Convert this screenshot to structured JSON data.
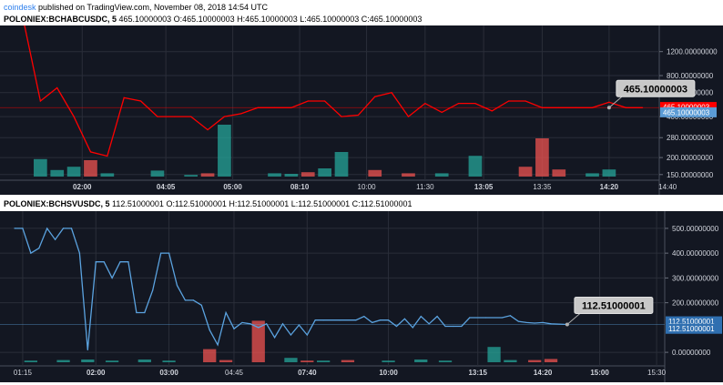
{
  "header": {
    "site": "coindesk",
    "published": "published on TradingView.com, November 08, 2018 14:54 UTC"
  },
  "chart_data": [
    {
      "type": "line",
      "symbol": "POLONIEX:BCHABCUSDC, 5",
      "ohlc_text": "465.10000003 O:465.10000003 H:465.10000003 L:465.10000003 C:465.10000003",
      "colors": {
        "background": "#131722",
        "line": "#ff0000",
        "volume_up": "#26a69a",
        "volume_down": "#ef5350",
        "grid": "#2a2e39"
      },
      "y_scale": "log",
      "ylim": [
        145,
        1600
      ],
      "y_ticks": [
        "1200.00000000",
        "800.00000000",
        "600.00000000",
        "400.00000000",
        "280.00000000",
        "200.00000000",
        "150.00000000"
      ],
      "y_tick_values": [
        1200,
        800,
        600,
        400,
        280,
        200,
        150
      ],
      "x_range": [
        0,
        38
      ],
      "x_ticks": [
        {
          "label": "02:00",
          "x": 3.5,
          "bold": true
        },
        {
          "label": "04:05",
          "x": 8.5,
          "bold": true
        },
        {
          "label": "05:00",
          "x": 12.5,
          "bold": true
        },
        {
          "label": "08:10",
          "x": 16.5,
          "bold": true
        },
        {
          "label": "10:00",
          "x": 20.5,
          "bold": false
        },
        {
          "label": "11:30",
          "x": 24.0,
          "bold": false
        },
        {
          "label": "13:05",
          "x": 27.5,
          "bold": true
        },
        {
          "label": "13:35",
          "x": 31.0,
          "bold": false
        },
        {
          "label": "14:20",
          "x": 35.0,
          "bold": true
        },
        {
          "label": "14:40",
          "x": 38.5,
          "bold": false
        }
      ],
      "line": [
        {
          "x": 0,
          "y": 2000
        },
        {
          "x": 1,
          "y": 520
        },
        {
          "x": 2,
          "y": 650
        },
        {
          "x": 3,
          "y": 400
        },
        {
          "x": 4,
          "y": 220
        },
        {
          "x": 5,
          "y": 205
        },
        {
          "x": 6,
          "y": 550
        },
        {
          "x": 7,
          "y": 520
        },
        {
          "x": 8,
          "y": 400
        },
        {
          "x": 9,
          "y": 400
        },
        {
          "x": 10,
          "y": 400
        },
        {
          "x": 11,
          "y": 320
        },
        {
          "x": 12,
          "y": 400
        },
        {
          "x": 13,
          "y": 420
        },
        {
          "x": 14,
          "y": 465
        },
        {
          "x": 15,
          "y": 465
        },
        {
          "x": 16,
          "y": 465
        },
        {
          "x": 17,
          "y": 520
        },
        {
          "x": 18,
          "y": 520
        },
        {
          "x": 19,
          "y": 400
        },
        {
          "x": 20,
          "y": 410
        },
        {
          "x": 21,
          "y": 560
        },
        {
          "x": 22,
          "y": 600
        },
        {
          "x": 23,
          "y": 400
        },
        {
          "x": 24,
          "y": 500
        },
        {
          "x": 25,
          "y": 430
        },
        {
          "x": 26,
          "y": 500
        },
        {
          "x": 27,
          "y": 500
        },
        {
          "x": 28,
          "y": 440
        },
        {
          "x": 29,
          "y": 520
        },
        {
          "x": 30,
          "y": 520
        },
        {
          "x": 31,
          "y": 465
        },
        {
          "x": 32,
          "y": 465
        },
        {
          "x": 33,
          "y": 465
        },
        {
          "x": 34,
          "y": 465
        },
        {
          "x": 35,
          "y": 510
        },
        {
          "x": 36,
          "y": 465
        },
        {
          "x": 37,
          "y": 465
        }
      ],
      "volume_max": 10,
      "volume": [
        {
          "x": 1,
          "v": 3.2,
          "up": true
        },
        {
          "x": 2,
          "v": 1.2,
          "up": true
        },
        {
          "x": 3,
          "v": 1.8,
          "up": true
        },
        {
          "x": 4,
          "v": 3.0,
          "up": false
        },
        {
          "x": 5,
          "v": 0.6,
          "up": true
        },
        {
          "x": 8,
          "v": 1.1,
          "up": true
        },
        {
          "x": 10,
          "v": 0.3,
          "up": true
        },
        {
          "x": 11,
          "v": 0.6,
          "up": false
        },
        {
          "x": 12,
          "v": 9.5,
          "up": true
        },
        {
          "x": 15,
          "v": 0.6,
          "up": true
        },
        {
          "x": 16,
          "v": 0.5,
          "up": true
        },
        {
          "x": 17,
          "v": 0.8,
          "up": false
        },
        {
          "x": 18,
          "v": 1.5,
          "up": true
        },
        {
          "x": 19,
          "v": 4.5,
          "up": true
        },
        {
          "x": 21,
          "v": 1.2,
          "up": false
        },
        {
          "x": 23,
          "v": 0.6,
          "up": false
        },
        {
          "x": 25,
          "v": 0.6,
          "up": true
        },
        {
          "x": 27,
          "v": 3.8,
          "up": true
        },
        {
          "x": 30,
          "v": 1.8,
          "up": false
        },
        {
          "x": 31,
          "v": 7.0,
          "up": false
        },
        {
          "x": 32,
          "v": 1.3,
          "up": false
        },
        {
          "x": 34,
          "v": 0.6,
          "up": true
        },
        {
          "x": 35,
          "v": 1.3,
          "up": true
        }
      ],
      "last_price": {
        "value": 465.10000003,
        "label": "465.10000003"
      },
      "price_tags": [
        {
          "label": "465.10000003",
          "color": "#ff0000",
          "y": 470
        },
        {
          "label": "465.10000003",
          "color": "#5b9bd5",
          "y": 430
        }
      ],
      "callout": {
        "label": "465.10000003",
        "x": 35
      }
    },
    {
      "type": "line",
      "symbol": "POLONIEX:BCHSVUSDC, 5",
      "ohlc_text": "112.51000001 O:112.51000001 H:112.51000001 L:112.51000001 C:112.51000001",
      "colors": {
        "background": "#131722",
        "line": "#5ba3e0",
        "volume_up": "#26a69a",
        "volume_down": "#ef5350",
        "grid": "#2a2e39"
      },
      "y_scale": "linear",
      "ylim": [
        -40,
        540
      ],
      "y_ticks": [
        "500.00000000",
        "400.00000000",
        "300.00000000",
        "200.00000000",
        "0.00000000"
      ],
      "y_tick_values": [
        500,
        400,
        300,
        200,
        0
      ],
      "x_range": [
        0,
        40
      ],
      "x_ticks": [
        {
          "label": "01:15",
          "x": 0.5,
          "bold": false
        },
        {
          "label": "02:00",
          "x": 5.0,
          "bold": true
        },
        {
          "label": "03:00",
          "x": 9.5,
          "bold": true
        },
        {
          "label": "04:45",
          "x": 13.5,
          "bold": false
        },
        {
          "label": "07:40",
          "x": 18.0,
          "bold": true
        },
        {
          "label": "10:00",
          "x": 23.0,
          "bold": true
        },
        {
          "label": "13:15",
          "x": 28.5,
          "bold": true
        },
        {
          "label": "14:20",
          "x": 32.5,
          "bold": true
        },
        {
          "label": "15:00",
          "x": 36.0,
          "bold": true
        },
        {
          "label": "15:30",
          "x": 39.5,
          "bold": false
        }
      ],
      "line": [
        {
          "x": 0,
          "y": 500
        },
        {
          "x": 0.5,
          "y": 500
        },
        {
          "x": 1,
          "y": 400
        },
        {
          "x": 1.5,
          "y": 420
        },
        {
          "x": 2,
          "y": 500
        },
        {
          "x": 2.5,
          "y": 455
        },
        {
          "x": 3,
          "y": 500
        },
        {
          "x": 3.5,
          "y": 500
        },
        {
          "x": 4,
          "y": 400
        },
        {
          "x": 4.5,
          "y": 10
        },
        {
          "x": 5,
          "y": 365
        },
        {
          "x": 5.5,
          "y": 365
        },
        {
          "x": 6,
          "y": 300
        },
        {
          "x": 6.5,
          "y": 365
        },
        {
          "x": 7,
          "y": 365
        },
        {
          "x": 7.5,
          "y": 160
        },
        {
          "x": 8,
          "y": 160
        },
        {
          "x": 8.5,
          "y": 250
        },
        {
          "x": 9,
          "y": 400
        },
        {
          "x": 9.5,
          "y": 400
        },
        {
          "x": 10,
          "y": 270
        },
        {
          "x": 10.5,
          "y": 210
        },
        {
          "x": 11,
          "y": 210
        },
        {
          "x": 11.5,
          "y": 190
        },
        {
          "x": 12,
          "y": 90
        },
        {
          "x": 12.5,
          "y": 30
        },
        {
          "x": 13,
          "y": 160
        },
        {
          "x": 13.5,
          "y": 95
        },
        {
          "x": 14,
          "y": 120
        },
        {
          "x": 14.5,
          "y": 115
        },
        {
          "x": 15,
          "y": 100
        },
        {
          "x": 15.5,
          "y": 115
        },
        {
          "x": 16,
          "y": 60
        },
        {
          "x": 16.5,
          "y": 115
        },
        {
          "x": 17,
          "y": 70
        },
        {
          "x": 17.5,
          "y": 110
        },
        {
          "x": 18,
          "y": 70
        },
        {
          "x": 18.5,
          "y": 130
        },
        {
          "x": 19,
          "y": 130
        },
        {
          "x": 20,
          "y": 130
        },
        {
          "x": 21,
          "y": 130
        },
        {
          "x": 21.5,
          "y": 145
        },
        {
          "x": 22,
          "y": 120
        },
        {
          "x": 22.5,
          "y": 130
        },
        {
          "x": 23,
          "y": 130
        },
        {
          "x": 23.5,
          "y": 105
        },
        {
          "x": 24,
          "y": 135
        },
        {
          "x": 24.5,
          "y": 100
        },
        {
          "x": 25,
          "y": 145
        },
        {
          "x": 25.5,
          "y": 115
        },
        {
          "x": 26,
          "y": 145
        },
        {
          "x": 26.5,
          "y": 105
        },
        {
          "x": 27,
          "y": 105
        },
        {
          "x": 27.5,
          "y": 105
        },
        {
          "x": 28,
          "y": 140
        },
        {
          "x": 29,
          "y": 140
        },
        {
          "x": 30,
          "y": 140
        },
        {
          "x": 30.5,
          "y": 148
        },
        {
          "x": 31,
          "y": 125
        },
        {
          "x": 31.5,
          "y": 120
        },
        {
          "x": 32,
          "y": 118
        },
        {
          "x": 32.5,
          "y": 120
        },
        {
          "x": 33,
          "y": 115
        },
        {
          "x": 34,
          "y": 112.51
        }
      ],
      "volume_max": 10,
      "volume": [
        {
          "x": 1,
          "v": 0.3,
          "up": true
        },
        {
          "x": 3,
          "v": 0.4,
          "up": true
        },
        {
          "x": 4.5,
          "v": 0.5,
          "up": true
        },
        {
          "x": 6,
          "v": 0.3,
          "up": true
        },
        {
          "x": 8,
          "v": 0.5,
          "up": true
        },
        {
          "x": 9.5,
          "v": 0.3,
          "up": true
        },
        {
          "x": 12,
          "v": 2.4,
          "up": false
        },
        {
          "x": 13,
          "v": 0.4,
          "up": false
        },
        {
          "x": 15,
          "v": 7.6,
          "up": false
        },
        {
          "x": 17,
          "v": 0.8,
          "up": true
        },
        {
          "x": 18,
          "v": 0.3,
          "up": false
        },
        {
          "x": 19,
          "v": 0.3,
          "up": true
        },
        {
          "x": 20.5,
          "v": 0.4,
          "up": false
        },
        {
          "x": 23,
          "v": 0.3,
          "up": true
        },
        {
          "x": 25,
          "v": 0.5,
          "up": true
        },
        {
          "x": 26.5,
          "v": 0.3,
          "up": true
        },
        {
          "x": 29.5,
          "v": 2.8,
          "up": true
        },
        {
          "x": 30.5,
          "v": 0.4,
          "up": true
        },
        {
          "x": 32,
          "v": 0.4,
          "up": false
        },
        {
          "x": 33,
          "v": 0.6,
          "up": false
        }
      ],
      "last_price": {
        "value": 112.51000001,
        "label": "112.51000001"
      },
      "price_tags": [
        {
          "label": "112.51000001",
          "color": "#2f6fb0",
          "y": 125
        },
        {
          "label": "112.51000001",
          "color": "#2f6fb0",
          "y": 95
        }
      ],
      "callout": {
        "label": "112.51000001",
        "x": 34
      }
    }
  ]
}
